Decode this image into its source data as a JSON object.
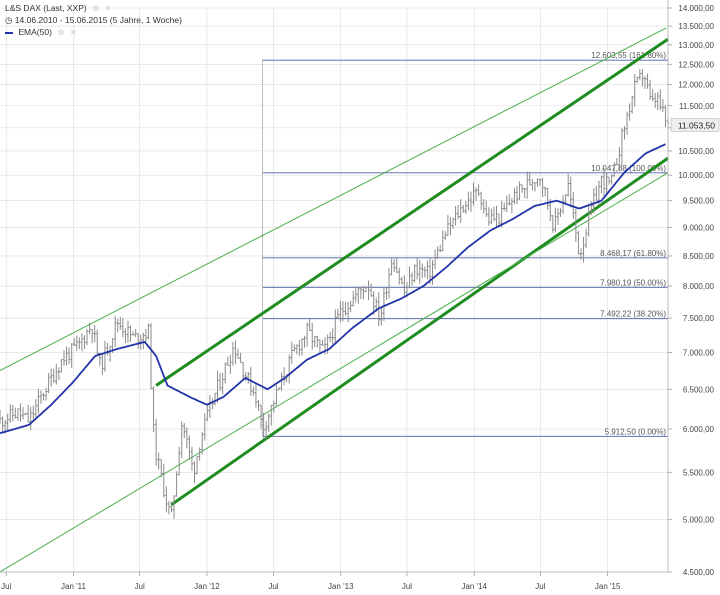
{
  "header": {
    "title": "L&S DAX (Last, XXP)",
    "range": "14.06.2010 - 15.06.2015 (5 Jahre, 1 Woche)",
    "indicator": "EMA(50)"
  },
  "colors": {
    "price": "#8a8a8a",
    "ema": "#2233aa",
    "channel_inner": "#1e8c1e",
    "channel_outer": "#4ab04a",
    "fib": "#4d5fa8",
    "grid": "#dddddd",
    "price_box": "#eeeeee"
  },
  "chart_data": {
    "type": "line",
    "y_scale": "log",
    "ylim": [
      4500,
      14000
    ],
    "xlim": [
      "2010-06-14",
      "2015-06-15"
    ],
    "y_ticks": [
      {
        "value": 4500,
        "label": "4.500,00"
      },
      {
        "value": 5000,
        "label": "5.000,00"
      },
      {
        "value": 5500,
        "label": "5.500,00"
      },
      {
        "value": 6000,
        "label": "6.000,00"
      },
      {
        "value": 6500,
        "label": "6.500,00"
      },
      {
        "value": 7000,
        "label": "7.000,00"
      },
      {
        "value": 7500,
        "label": "7.500,00"
      },
      {
        "value": 8000,
        "label": "8.000,00"
      },
      {
        "value": 8500,
        "label": "8.500,00"
      },
      {
        "value": 9000,
        "label": "9.000,00"
      },
      {
        "value": 9500,
        "label": "9.500,00"
      },
      {
        "value": 10000,
        "label": "10.000,00"
      },
      {
        "value": 10500,
        "label": "10.500,00"
      },
      {
        "value": 11000,
        "label": "11.000,00"
      },
      {
        "value": 11500,
        "label": "11.500,00"
      },
      {
        "value": 12000,
        "label": "12.000,00"
      },
      {
        "value": 12500,
        "label": "12.500,00"
      },
      {
        "value": 13000,
        "label": "13.000,00"
      },
      {
        "value": 13500,
        "label": "13.500,00"
      },
      {
        "value": 14000,
        "label": "14.000,00"
      }
    ],
    "x_ticks": [
      {
        "date": "2010-07-01",
        "label": "Jul"
      },
      {
        "date": "2011-01-01",
        "label": "Jan '11"
      },
      {
        "date": "2011-07-01",
        "label": "Jul"
      },
      {
        "date": "2012-01-01",
        "label": "Jan '12"
      },
      {
        "date": "2012-07-01",
        "label": "Jul"
      },
      {
        "date": "2013-01-01",
        "label": "Jan '13"
      },
      {
        "date": "2013-07-01",
        "label": "Jul"
      },
      {
        "date": "2014-01-01",
        "label": "Jan '14"
      },
      {
        "date": "2014-07-01",
        "label": "Jul"
      },
      {
        "date": "2015-01-01",
        "label": "Jan '15"
      }
    ],
    "last_price_label": "11.053,50",
    "last_price_value": 11053.5,
    "price_anchors": [
      [
        "2010-06-14",
        6100
      ],
      [
        "2010-08-01",
        6200
      ],
      [
        "2010-09-01",
        6100
      ],
      [
        "2010-10-15",
        6500
      ],
      [
        "2010-12-01",
        6900
      ],
      [
        "2011-01-15",
        7100
      ],
      [
        "2011-02-20",
        7400
      ],
      [
        "2011-03-15",
        6800
      ],
      [
        "2011-05-01",
        7450
      ],
      [
        "2011-06-15",
        7200
      ],
      [
        "2011-07-25",
        7300
      ],
      [
        "2011-08-10",
        5800
      ],
      [
        "2011-09-12",
        5200
      ],
      [
        "2011-09-25",
        5000
      ],
      [
        "2011-10-25",
        6100
      ],
      [
        "2011-11-25",
        5500
      ],
      [
        "2011-12-15",
        5900
      ],
      [
        "2012-01-20",
        6400
      ],
      [
        "2012-03-15",
        7100
      ],
      [
        "2012-04-15",
        6700
      ],
      [
        "2012-05-15",
        6400
      ],
      [
        "2012-06-01",
        6000
      ],
      [
        "2012-06-15",
        6150
      ],
      [
        "2012-07-15",
        6500
      ],
      [
        "2012-08-25",
        7000
      ],
      [
        "2012-10-01",
        7300
      ],
      [
        "2012-11-15",
        7000
      ],
      [
        "2013-01-01",
        7600
      ],
      [
        "2013-03-15",
        8050
      ],
      [
        "2013-04-18",
        7500
      ],
      [
        "2013-05-22",
        8500
      ],
      [
        "2013-06-24",
        7900
      ],
      [
        "2013-07-25",
        8300
      ],
      [
        "2013-08-30",
        8200
      ],
      [
        "2013-10-15",
        8900
      ],
      [
        "2013-12-01",
        9400
      ],
      [
        "2014-01-15",
        9700
      ],
      [
        "2014-02-05",
        9150
      ],
      [
        "2014-03-14",
        9200
      ],
      [
        "2014-04-15",
        9550
      ],
      [
        "2014-06-15",
        9950
      ],
      [
        "2014-07-01",
        10000
      ],
      [
        "2014-08-08",
        9000
      ],
      [
        "2014-08-20",
        9300
      ],
      [
        "2014-09-15",
        9800
      ],
      [
        "2014-10-16",
        8500
      ],
      [
        "2014-11-15",
        9300
      ],
      [
        "2014-12-15",
        9900
      ],
      [
        "2015-01-10",
        9800
      ],
      [
        "2015-02-15",
        11000
      ],
      [
        "2015-03-15",
        11900
      ],
      [
        "2015-04-10",
        12300
      ],
      [
        "2015-04-30",
        11500
      ],
      [
        "2015-05-15",
        11700
      ],
      [
        "2015-06-10",
        11100
      ],
      [
        "2015-06-15",
        11053.5
      ]
    ],
    "ema_anchors": [
      [
        "2010-06-14",
        5950
      ],
      [
        "2010-09-01",
        6050
      ],
      [
        "2010-11-01",
        6300
      ],
      [
        "2011-01-01",
        6600
      ],
      [
        "2011-03-01",
        6950
      ],
      [
        "2011-05-01",
        7050
      ],
      [
        "2011-07-15",
        7150
      ],
      [
        "2011-08-15",
        6950
      ],
      [
        "2011-09-15",
        6550
      ],
      [
        "2011-11-15",
        6400
      ],
      [
        "2012-01-01",
        6300
      ],
      [
        "2012-02-15",
        6400
      ],
      [
        "2012-04-15",
        6650
      ],
      [
        "2012-06-15",
        6500
      ],
      [
        "2012-08-01",
        6650
      ],
      [
        "2012-10-01",
        6900
      ],
      [
        "2012-12-01",
        7050
      ],
      [
        "2013-02-01",
        7350
      ],
      [
        "2013-04-15",
        7650
      ],
      [
        "2013-06-15",
        7800
      ],
      [
        "2013-08-15",
        8000
      ],
      [
        "2013-10-15",
        8300
      ],
      [
        "2013-12-15",
        8650
      ],
      [
        "2014-02-15",
        8950
      ],
      [
        "2014-04-15",
        9150
      ],
      [
        "2014-06-15",
        9400
      ],
      [
        "2014-08-15",
        9500
      ],
      [
        "2014-10-15",
        9350
      ],
      [
        "2014-12-15",
        9500
      ],
      [
        "2015-02-15",
        10050
      ],
      [
        "2015-04-15",
        10450
      ],
      [
        "2015-06-10",
        10650
      ]
    ],
    "fibonacci": {
      "start_date": "2012-06-01",
      "levels": [
        {
          "value": 12603.55,
          "label": "12.603,55 (161.80%)"
        },
        {
          "value": 10047.88,
          "label": "10.047,88 (100.00%)"
        },
        {
          "value": 8468.17,
          "label": "8.468,17 (61.80%)"
        },
        {
          "value": 7980.19,
          "label": "7.980,19 (50.00%)"
        },
        {
          "value": 7492.22,
          "label": "7.492,22 (38.20%)"
        },
        {
          "value": 5912.5,
          "label": "5.912,50 (0.00%)"
        }
      ]
    },
    "trend_lines": [
      {
        "kind": "inner",
        "from": [
          "2011-08-15",
          6550
        ],
        "to": [
          "2015-06-15",
          13150
        ]
      },
      {
        "kind": "inner",
        "from": [
          "2011-09-25",
          5150
        ],
        "to": [
          "2015-06-15",
          10350
        ]
      },
      {
        "kind": "outer",
        "from": [
          "2010-06-14",
          6750
        ],
        "to": [
          "2015-06-10",
          13450
        ]
      },
      {
        "kind": "outer",
        "from": [
          "2010-06-14",
          4500
        ],
        "to": [
          "2015-06-15",
          10050
        ]
      }
    ]
  }
}
